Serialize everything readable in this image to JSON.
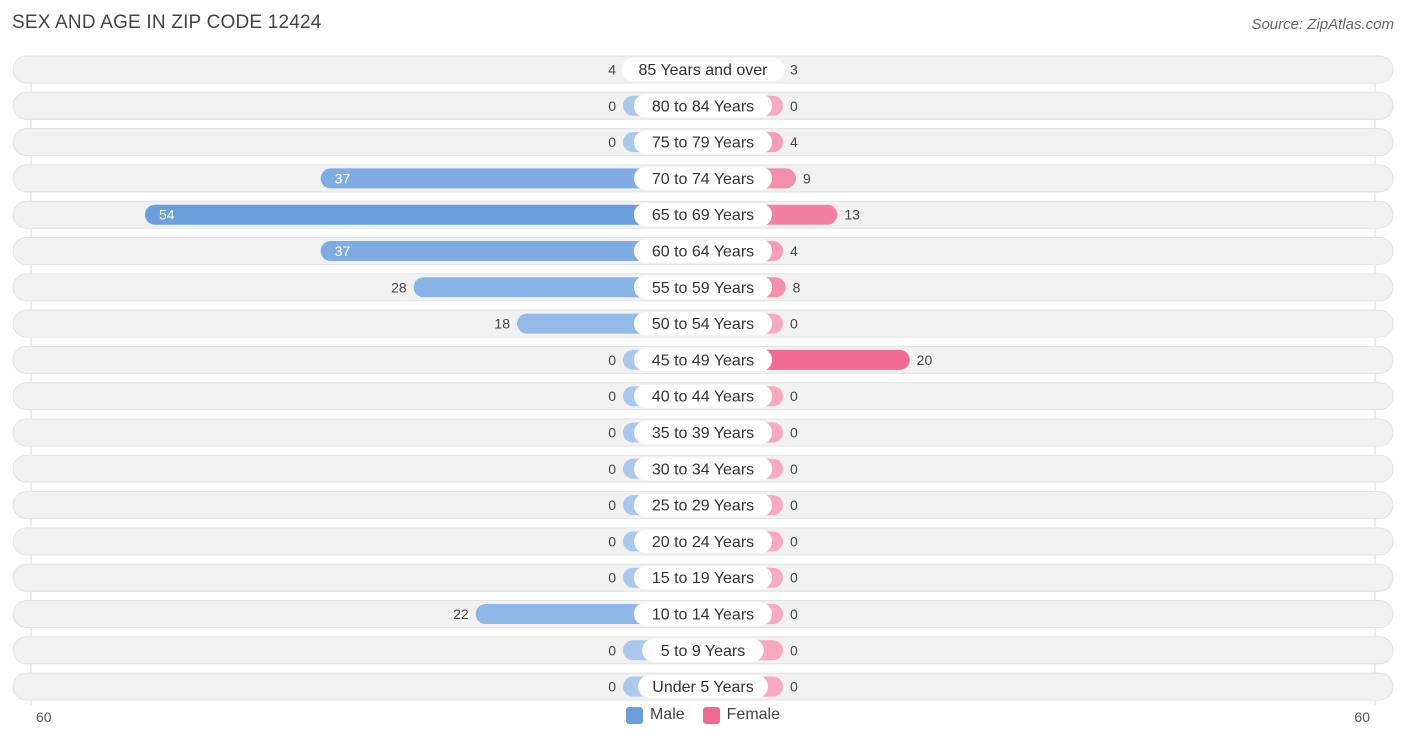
{
  "title": "SEX AND AGE IN ZIP CODE 12424",
  "source": "Source: ZipAtlas.com",
  "colors": {
    "male": "#6a9fde",
    "male_light": "#a9c8ec",
    "female": "#f06a93",
    "female_light": "#f6a9c0"
  },
  "chart_data": {
    "type": "bar",
    "orientation": "horizontal-diverging",
    "categories": [
      "85 Years and over",
      "80 to 84 Years",
      "75 to 79 Years",
      "70 to 74 Years",
      "65 to 69 Years",
      "60 to 64 Years",
      "55 to 59 Years",
      "50 to 54 Years",
      "45 to 49 Years",
      "40 to 44 Years",
      "35 to 39 Years",
      "30 to 34 Years",
      "25 to 29 Years",
      "20 to 24 Years",
      "15 to 19 Years",
      "10 to 14 Years",
      "5 to 9 Years",
      "Under 5 Years"
    ],
    "series": [
      {
        "name": "Male",
        "values": [
          4,
          0,
          0,
          37,
          54,
          37,
          28,
          18,
          0,
          0,
          0,
          0,
          0,
          0,
          0,
          22,
          0,
          0
        ]
      },
      {
        "name": "Female",
        "values": [
          3,
          0,
          4,
          9,
          13,
          4,
          8,
          0,
          20,
          0,
          0,
          0,
          0,
          0,
          0,
          0,
          0,
          0
        ]
      }
    ],
    "xlim": [
      -60,
      60
    ],
    "axis_left_label": "60",
    "axis_right_label": "60",
    "legend": [
      "Male",
      "Female"
    ],
    "legend_position": "bottom-center"
  }
}
